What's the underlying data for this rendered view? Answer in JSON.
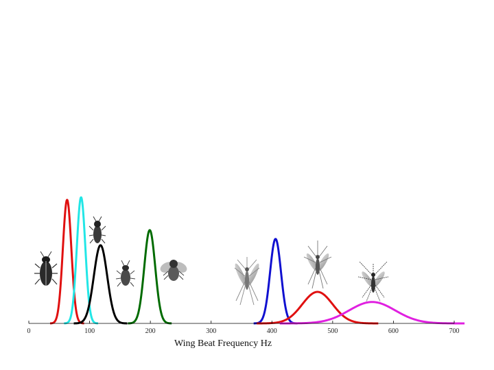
{
  "chart_data": {
    "type": "line",
    "title": "",
    "xlabel": "Wing Beat Frequency Hz",
    "ylabel": "",
    "xlim": [
      0,
      700
    ],
    "ylim": [
      0,
      1
    ],
    "grid": false,
    "legend": "none",
    "x_ticks": [
      0,
      100,
      200,
      300,
      400,
      500,
      600,
      700
    ],
    "series": [
      {
        "color": "#e01010",
        "mean": 63,
        "sd": 7,
        "peak": 0.98
      },
      {
        "color": "#22e6e6",
        "mean": 86,
        "sd": 7,
        "peak": 1.0
      },
      {
        "color": "#000000",
        "mean": 118,
        "sd": 11,
        "peak": 0.62
      },
      {
        "color": "#006b00",
        "mean": 199,
        "sd": 9,
        "peak": 0.74
      },
      {
        "color": "#1010d0",
        "mean": 406,
        "sd": 9,
        "peak": 0.67
      },
      {
        "color": "#e01010",
        "mean": 475,
        "sd": 25,
        "peak": 0.25
      },
      {
        "color": "#e020e0",
        "mean": 565,
        "sd": 38,
        "peak": 0.17
      }
    ],
    "insect_icons": [
      "beetle-icon",
      "beetle-icon",
      "beetle-icon",
      "fly-icon",
      "mosquito-icon",
      "mosquito-icon",
      "mosquito-icon"
    ]
  }
}
